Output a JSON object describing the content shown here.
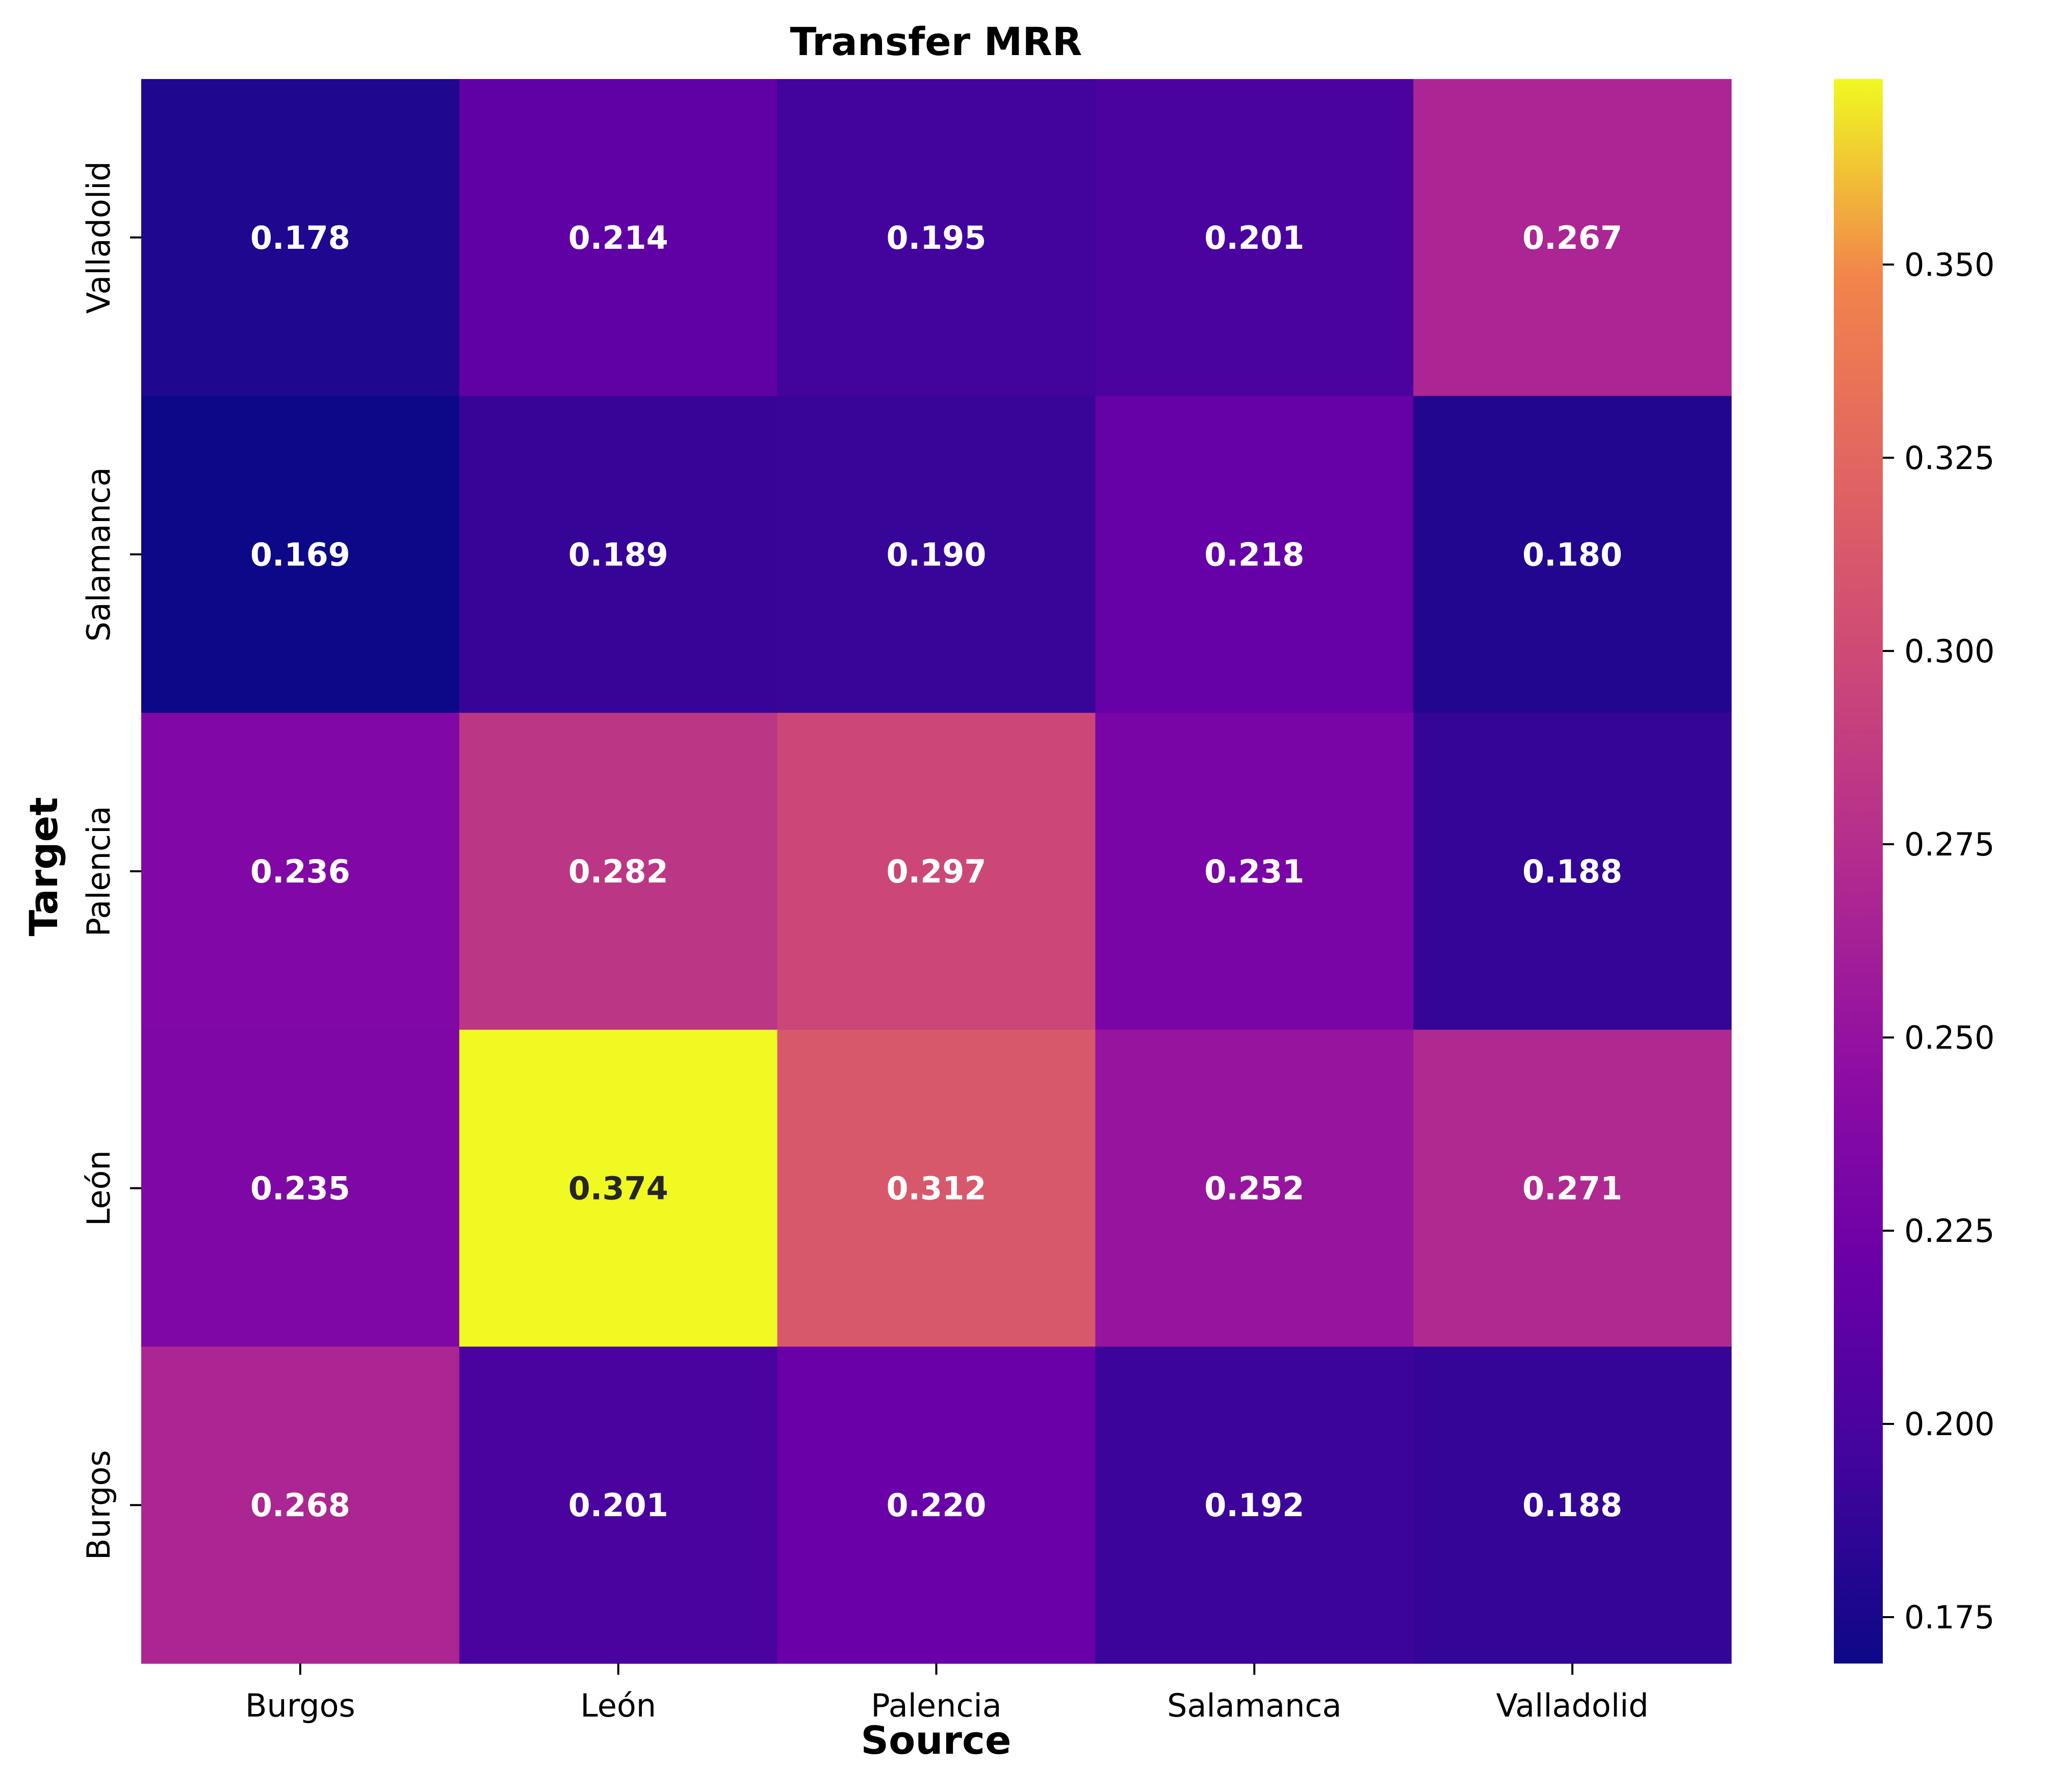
{
  "chart_data": {
    "type": "heatmap",
    "title": "Transfer MRR",
    "xlabel": "Source",
    "ylabel": "Target",
    "x_categories": [
      "Burgos",
      "León",
      "Palencia",
      "Salamanca",
      "Valladolid"
    ],
    "y_categories": [
      "Valladolid",
      "Salamanca",
      "Palencia",
      "León",
      "Burgos"
    ],
    "values": [
      [
        0.178,
        0.214,
        0.195,
        0.201,
        0.267
      ],
      [
        0.169,
        0.189,
        0.19,
        0.218,
        0.18
      ],
      [
        0.236,
        0.282,
        0.297,
        0.231,
        0.188
      ],
      [
        0.235,
        0.374,
        0.312,
        0.252,
        0.271
      ],
      [
        0.268,
        0.201,
        0.22,
        0.192,
        0.188
      ]
    ],
    "value_labels": [
      [
        "0.178",
        "0.214",
        "0.195",
        "0.201",
        "0.267"
      ],
      [
        "0.169",
        "0.189",
        "0.190",
        "0.218",
        "0.180"
      ],
      [
        "0.236",
        "0.282",
        "0.297",
        "0.231",
        "0.188"
      ],
      [
        "0.235",
        "0.374",
        "0.312",
        "0.252",
        "0.271"
      ],
      [
        "0.268",
        "0.201",
        "0.220",
        "0.192",
        "0.188"
      ]
    ],
    "colormap": "plasma",
    "colorbar": {
      "min": 0.169,
      "max": 0.374,
      "ticks": [
        0.175,
        0.2,
        0.225,
        0.25,
        0.275,
        0.3,
        0.325,
        0.35
      ],
      "tick_labels": [
        "0.175",
        "0.200",
        "0.225",
        "0.250",
        "0.275",
        "0.300",
        "0.325",
        "0.350"
      ],
      "position": "right"
    },
    "grid": false
  }
}
